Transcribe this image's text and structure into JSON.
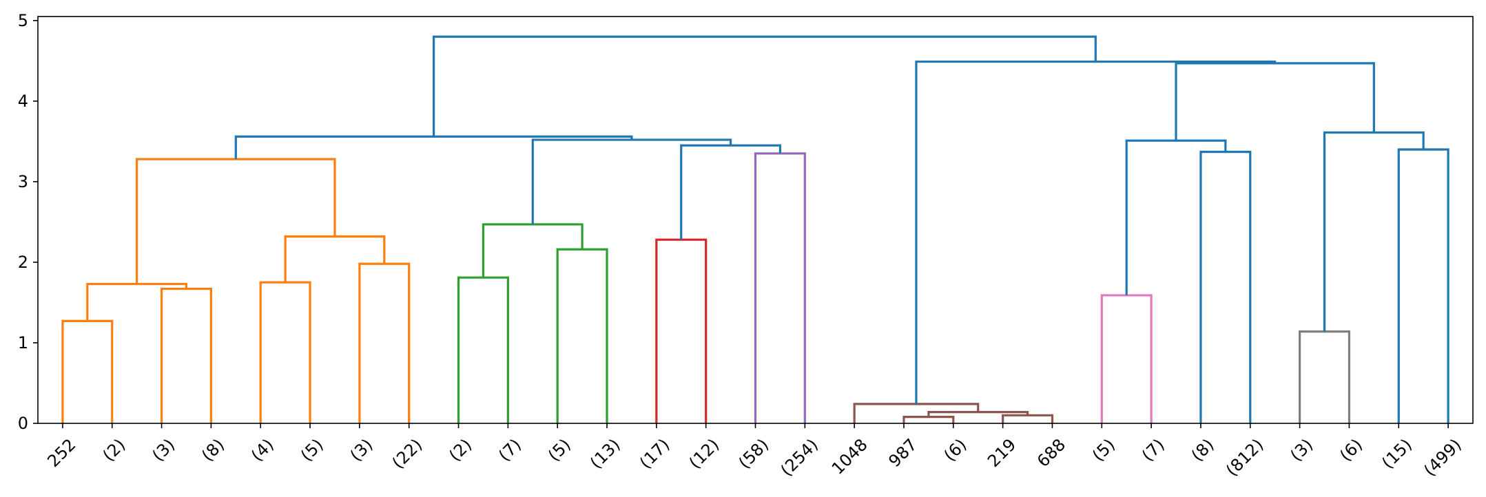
{
  "chart_data": {
    "type": "dendrogram",
    "title": "",
    "xlabel": "",
    "ylabel": "",
    "ylim": [
      0,
      5.05
    ],
    "y_ticks": [
      0,
      1,
      2,
      3,
      4,
      5
    ],
    "grid": false,
    "legend": "none",
    "leaf_labels": [
      "252",
      "(2)",
      "(3)",
      "(8)",
      "(4)",
      "(5)",
      "(3)",
      "(22)",
      "(2)",
      "(7)",
      "(5)",
      "(13)",
      "(17)",
      "(12)",
      "(58)",
      "(254)",
      "1048",
      "987",
      "(6)",
      "219",
      "688",
      "(5)",
      "(7)",
      "(8)",
      "(812)",
      "(3)",
      "(6)",
      "(15)",
      "(499)"
    ],
    "colors": {
      "above_threshold": "#1f77b4",
      "orange": "#ff7f0e",
      "green": "#2ca02c",
      "red": "#d62728",
      "purple": "#9467bd",
      "brown": "#8c564b",
      "pink": "#e377c2",
      "gray": "#7f7f7f"
    },
    "links": [
      {
        "x": [
          5,
          5,
          15,
          15
        ],
        "y": [
          0,
          1.27,
          1.27,
          0
        ],
        "color": "orange"
      },
      {
        "x": [
          25,
          25,
          35,
          35
        ],
        "y": [
          0,
          1.67,
          1.67,
          0
        ],
        "color": "orange"
      },
      {
        "x": [
          10,
          10,
          30,
          30
        ],
        "y": [
          1.27,
          1.73,
          1.73,
          1.67
        ],
        "color": "orange"
      },
      {
        "x": [
          45,
          45,
          55,
          55
        ],
        "y": [
          0,
          1.75,
          1.75,
          0
        ],
        "color": "orange"
      },
      {
        "x": [
          65,
          65,
          75,
          75
        ],
        "y": [
          0,
          1.98,
          1.98,
          0
        ],
        "color": "orange"
      },
      {
        "x": [
          50,
          50,
          70,
          70
        ],
        "y": [
          1.75,
          2.32,
          2.32,
          1.98
        ],
        "color": "orange"
      },
      {
        "x": [
          20,
          20,
          60,
          60
        ],
        "y": [
          1.73,
          3.28,
          3.28,
          2.32
        ],
        "color": "orange"
      },
      {
        "x": [
          85,
          85,
          95,
          95
        ],
        "y": [
          0,
          1.81,
          1.81,
          0
        ],
        "color": "green"
      },
      {
        "x": [
          105,
          105,
          115,
          115
        ],
        "y": [
          0,
          2.16,
          2.16,
          0
        ],
        "color": "green"
      },
      {
        "x": [
          90,
          90,
          110,
          110
        ],
        "y": [
          1.81,
          2.47,
          2.47,
          2.16
        ],
        "color": "green"
      },
      {
        "x": [
          125,
          125,
          135,
          135
        ],
        "y": [
          0,
          2.28,
          2.28,
          0
        ],
        "color": "red"
      },
      {
        "x": [
          145,
          145,
          155,
          155
        ],
        "y": [
          0,
          3.35,
          3.35,
          0
        ],
        "color": "purple"
      },
      {
        "x": [
          130,
          130,
          150,
          150
        ],
        "y": [
          2.28,
          3.45,
          3.45,
          3.35
        ],
        "color": "above_threshold"
      },
      {
        "x": [
          100,
          100,
          140,
          140
        ],
        "y": [
          2.47,
          3.52,
          3.52,
          3.45
        ],
        "color": "above_threshold"
      },
      {
        "x": [
          40,
          40,
          120,
          120
        ],
        "y": [
          3.28,
          3.56,
          3.56,
          3.52
        ],
        "color": "above_threshold"
      },
      {
        "x": [
          175,
          175,
          185,
          185
        ],
        "y": [
          0,
          0.08,
          0.08,
          0
        ],
        "color": "brown"
      },
      {
        "x": [
          195,
          195,
          205,
          205
        ],
        "y": [
          0,
          0.1,
          0.1,
          0
        ],
        "color": "brown"
      },
      {
        "x": [
          180,
          180,
          200,
          200
        ],
        "y": [
          0.08,
          0.14,
          0.14,
          0.1
        ],
        "color": "brown"
      },
      {
        "x": [
          165,
          165,
          190,
          190
        ],
        "y": [
          0,
          0.24,
          0.24,
          0.14
        ],
        "color": "brown"
      },
      {
        "x": [
          215,
          215,
          225,
          225
        ],
        "y": [
          0,
          1.59,
          1.59,
          0
        ],
        "color": "pink"
      },
      {
        "x": [
          235,
          235,
          245,
          245
        ],
        "y": [
          0,
          3.37,
          3.37,
          0
        ],
        "color": "above_threshold"
      },
      {
        "x": [
          220,
          220,
          240,
          240
        ],
        "y": [
          1.59,
          3.51,
          3.51,
          3.37
        ],
        "color": "above_threshold"
      },
      {
        "x": [
          255,
          255,
          265,
          265
        ],
        "y": [
          0,
          1.14,
          1.14,
          0
        ],
        "color": "gray"
      },
      {
        "x": [
          275,
          275,
          285,
          285
        ],
        "y": [
          0,
          3.4,
          3.4,
          0
        ],
        "color": "above_threshold"
      },
      {
        "x": [
          260,
          260,
          280,
          280
        ],
        "y": [
          1.14,
          3.61,
          3.61,
          3.4
        ],
        "color": "above_threshold"
      },
      {
        "x": [
          230,
          230,
          270,
          270
        ],
        "y": [
          3.51,
          4.47,
          4.47,
          3.61
        ],
        "color": "above_threshold"
      },
      {
        "x": [
          177.5,
          177.5,
          250,
          250
        ],
        "y": [
          0.24,
          4.49,
          4.49,
          4.47
        ],
        "color": "above_threshold"
      },
      {
        "x": [
          80,
          80,
          213.75,
          213.75
        ],
        "y": [
          3.56,
          4.8,
          4.8,
          4.49
        ],
        "color": "above_threshold"
      }
    ]
  }
}
